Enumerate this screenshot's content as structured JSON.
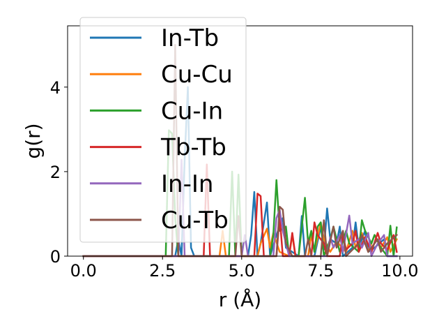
{
  "chart_data": {
    "type": "line",
    "xlabel": "r (Å)",
    "ylabel": "g(r)",
    "xlim": [
      -0.5,
      10.4
    ],
    "ylim": [
      0,
      5.45
    ],
    "xticks": [
      0.0,
      2.5,
      5.0,
      7.5,
      10.0
    ],
    "xtick_labels": [
      "0.0",
      "2.5",
      "5.0",
      "7.5",
      "10.0"
    ],
    "yticks": [
      0,
      2,
      4
    ],
    "ytick_labels": [
      "0",
      "2",
      "4"
    ],
    "grid": false,
    "legend_position": "upper-left",
    "series": [
      {
        "name": "In-Tb",
        "color": "#1f77b4",
        "points": [
          [
            0,
            0
          ],
          [
            2.9,
            0
          ],
          [
            3.0,
            0.4
          ],
          [
            3.1,
            0
          ],
          [
            3.2,
            2.3
          ],
          [
            3.3,
            4.0
          ],
          [
            3.4,
            0.2
          ],
          [
            3.5,
            0
          ],
          [
            5.2,
            0
          ],
          [
            5.3,
            0.5
          ],
          [
            5.4,
            1.52
          ],
          [
            5.5,
            0
          ],
          [
            5.6,
            0.3
          ],
          [
            5.8,
            1.27
          ],
          [
            5.9,
            0
          ],
          [
            6.1,
            0.5
          ],
          [
            6.3,
            0.9
          ],
          [
            6.4,
            0.2
          ],
          [
            6.8,
            0
          ],
          [
            6.9,
            0.95
          ],
          [
            7.0,
            0
          ],
          [
            7.3,
            0
          ],
          [
            7.5,
            0.7
          ],
          [
            7.6,
            0.15
          ],
          [
            7.7,
            1.13
          ],
          [
            7.8,
            0.4
          ],
          [
            8.0,
            0.3
          ],
          [
            8.1,
            0.7
          ],
          [
            8.2,
            0
          ],
          [
            8.5,
            0.2
          ],
          [
            8.6,
            0.8
          ],
          [
            8.7,
            0.2
          ],
          [
            8.9,
            0.6
          ],
          [
            9.0,
            0.1
          ],
          [
            9.2,
            0.2
          ],
          [
            9.5,
            0.4
          ],
          [
            9.6,
            0
          ],
          [
            9.9,
            0
          ]
        ]
      },
      {
        "name": "Cu-Cu",
        "color": "#ff7f0e",
        "points": [
          [
            0,
            0
          ],
          [
            4.3,
            0
          ],
          [
            4.4,
            0.6
          ],
          [
            4.5,
            0
          ],
          [
            5.5,
            0
          ],
          [
            5.6,
            0.3
          ],
          [
            5.8,
            0.65
          ],
          [
            5.9,
            0.2
          ],
          [
            6.0,
            0.55
          ],
          [
            6.2,
            0.1
          ],
          [
            6.5,
            0
          ],
          [
            6.6,
            0.5
          ],
          [
            6.7,
            0
          ],
          [
            7.1,
            0
          ],
          [
            7.2,
            0.5
          ],
          [
            7.3,
            0.1
          ],
          [
            7.5,
            0.8
          ],
          [
            7.6,
            0.4
          ],
          [
            7.8,
            0.1
          ],
          [
            8.0,
            0.35
          ],
          [
            8.3,
            0.1
          ],
          [
            8.5,
            0.6
          ],
          [
            8.6,
            0.2
          ],
          [
            8.8,
            0.55
          ],
          [
            9.0,
            0.1
          ],
          [
            9.2,
            0.5
          ],
          [
            9.4,
            0.2
          ],
          [
            9.6,
            0.45
          ],
          [
            9.7,
            0.1
          ],
          [
            9.9,
            0.4
          ]
        ]
      },
      {
        "name": "Cu-In",
        "color": "#2ca02c",
        "points": [
          [
            0,
            0
          ],
          [
            2.6,
            0
          ],
          [
            2.7,
            2.98
          ],
          [
            2.8,
            2.9
          ],
          [
            2.9,
            0.9
          ],
          [
            3.0,
            0
          ],
          [
            4.6,
            0
          ],
          [
            4.7,
            2.0
          ],
          [
            4.8,
            0
          ],
          [
            4.9,
            1.93
          ],
          [
            5.0,
            0
          ],
          [
            5.9,
            0
          ],
          [
            6.0,
            0.5
          ],
          [
            6.1,
            1.8
          ],
          [
            6.2,
            0.6
          ],
          [
            6.4,
            0.7
          ],
          [
            6.5,
            0
          ],
          [
            6.8,
            0
          ],
          [
            7.0,
            1.38
          ],
          [
            7.1,
            0.3
          ],
          [
            7.2,
            0.6
          ],
          [
            7.3,
            0.1
          ],
          [
            7.4,
            0.7
          ],
          [
            7.5,
            0.8
          ],
          [
            7.6,
            0
          ],
          [
            7.8,
            0.4
          ],
          [
            7.9,
            0.7
          ],
          [
            8.1,
            0.1
          ],
          [
            8.3,
            0.6
          ],
          [
            8.4,
            0.3
          ],
          [
            8.7,
            0.1
          ],
          [
            8.8,
            0.85
          ],
          [
            8.9,
            0.6
          ],
          [
            9.1,
            0.3
          ],
          [
            9.2,
            0.5
          ],
          [
            9.4,
            0.2
          ],
          [
            9.6,
            0
          ],
          [
            9.7,
            0.72
          ],
          [
            9.8,
            0
          ],
          [
            9.9,
            0.68
          ]
        ]
      },
      {
        "name": "Tb-Tb",
        "color": "#d62728",
        "points": [
          [
            0,
            0
          ],
          [
            3.8,
            0
          ],
          [
            3.9,
            2.17
          ],
          [
            4.0,
            0
          ],
          [
            5.4,
            0
          ],
          [
            5.5,
            1.48
          ],
          [
            5.6,
            1.42
          ],
          [
            5.7,
            0
          ],
          [
            6.1,
            0
          ],
          [
            6.2,
            0.95
          ],
          [
            6.3,
            0
          ],
          [
            6.5,
            0
          ],
          [
            6.6,
            0.55
          ],
          [
            6.7,
            0
          ],
          [
            7.2,
            0
          ],
          [
            7.3,
            0.8
          ],
          [
            7.4,
            0.5
          ],
          [
            7.6,
            0.3
          ],
          [
            7.7,
            0
          ],
          [
            8.1,
            0
          ],
          [
            8.2,
            0.5
          ],
          [
            8.3,
            0.15
          ],
          [
            8.5,
            0.3
          ],
          [
            8.6,
            0.6
          ],
          [
            8.7,
            0.1
          ],
          [
            8.9,
            0.45
          ],
          [
            9.1,
            0.1
          ],
          [
            9.3,
            0.55
          ],
          [
            9.4,
            0.3
          ],
          [
            9.6,
            0.15
          ],
          [
            9.8,
            0.5
          ],
          [
            9.9,
            0.1
          ]
        ]
      },
      {
        "name": "In-In",
        "color": "#9467bd",
        "points": [
          [
            0,
            0
          ],
          [
            3.0,
            0
          ],
          [
            3.1,
            2.28
          ],
          [
            3.2,
            0
          ],
          [
            5.0,
            0
          ],
          [
            5.1,
            0.5
          ],
          [
            5.2,
            0
          ],
          [
            6.0,
            0
          ],
          [
            6.1,
            0.9
          ],
          [
            6.2,
            1.1
          ],
          [
            6.3,
            0.6
          ],
          [
            6.5,
            0
          ],
          [
            7.7,
            0
          ],
          [
            7.8,
            0.45
          ],
          [
            7.9,
            0.2
          ],
          [
            8.1,
            0.5
          ],
          [
            8.2,
            0.1
          ],
          [
            8.4,
            0.96
          ],
          [
            8.5,
            0.3
          ],
          [
            8.7,
            0.4
          ],
          [
            8.8,
            0.2
          ],
          [
            9.0,
            0.55
          ],
          [
            9.1,
            0
          ],
          [
            9.3,
            0.3
          ],
          [
            9.5,
            0.5
          ],
          [
            9.6,
            0
          ],
          [
            9.9,
            0
          ]
        ]
      },
      {
        "name": "Cu-Tb",
        "color": "#8c564b",
        "points": [
          [
            0,
            0
          ],
          [
            2.8,
            0
          ],
          [
            2.9,
            5.0
          ],
          [
            3.0,
            0
          ],
          [
            4.8,
            0
          ],
          [
            4.9,
            0.95
          ],
          [
            5.0,
            0
          ],
          [
            6.1,
            0
          ],
          [
            6.2,
            1.17
          ],
          [
            6.3,
            1.1
          ],
          [
            6.4,
            0.3
          ],
          [
            6.6,
            0
          ],
          [
            7.0,
            0
          ],
          [
            7.1,
            0.4
          ],
          [
            7.2,
            0
          ],
          [
            7.5,
            0
          ],
          [
            7.6,
            0.85
          ],
          [
            7.7,
            0
          ],
          [
            7.9,
            0.7
          ],
          [
            8.0,
            0.2
          ],
          [
            8.2,
            0.6
          ],
          [
            8.3,
            0
          ],
          [
            8.7,
            0.3
          ],
          [
            8.8,
            0.5
          ],
          [
            9.0,
            0.1
          ],
          [
            9.3,
            0.4
          ],
          [
            9.4,
            0.1
          ],
          [
            9.6,
            0.3
          ],
          [
            9.9,
            0.5
          ]
        ]
      }
    ]
  }
}
